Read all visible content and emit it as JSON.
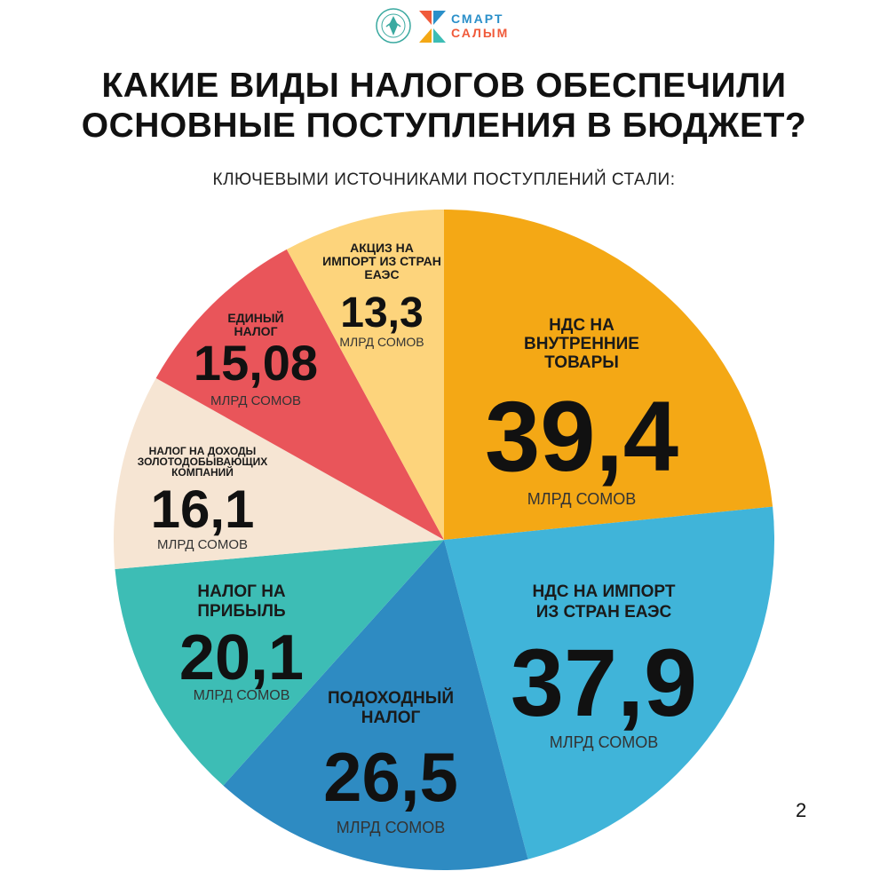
{
  "header": {
    "emblem_icon": "emblem-icon",
    "brand_line1": "СМАРТ",
    "brand_line2": "САЛЫМ",
    "brand_icon": "smart-salym-logo-icon"
  },
  "title_line1": "КАКИЕ ВИДЫ НАЛОГОВ ОБЕСПЕЧИЛИ",
  "title_line2": "ОСНОВНЫЕ ПОСТУПЛЕНИЯ В БЮДЖЕТ?",
  "subtitle": "КЛЮЧЕВЫМИ ИСТОЧНИКАМИ ПОСТУПЛЕНИЙ СТАЛИ:",
  "page_number": "2",
  "chart_data": {
    "type": "pie",
    "unit": "МЛРД СОМОВ",
    "slices": [
      {
        "label_lines": [
          "НДС НА",
          "ВНУТРЕННИЕ",
          "ТОВАРЫ"
        ],
        "value": 39.4,
        "value_text": "39,4",
        "color": "#f4a815"
      },
      {
        "label_lines": [
          "НДС НА ИМПОРТ",
          "ИЗ СТРАН ЕАЭС"
        ],
        "value": 37.9,
        "value_text": "37,9",
        "color": "#40b4d9"
      },
      {
        "label_lines": [
          "ПОДОХОДНЫЙ",
          "НАЛОГ"
        ],
        "value": 26.5,
        "value_text": "26,5",
        "color": "#2e8bc2"
      },
      {
        "label_lines": [
          "НАЛОГ НА",
          "ПРИБЫЛЬ"
        ],
        "value": 20.1,
        "value_text": "20,1",
        "color": "#3dbdb5"
      },
      {
        "label_lines": [
          "НАЛОГ НА ДОХОДЫ",
          "ЗОЛОТОДОБЫВАЮЩИХ",
          "КОМПАНИЙ"
        ],
        "value": 16.1,
        "value_text": "16,1",
        "color": "#f6e5d3"
      },
      {
        "label_lines": [
          "ЕДИНЫЙ",
          "НАЛОГ"
        ],
        "value": 15.08,
        "value_text": "15,08",
        "color": "#e9555a"
      },
      {
        "label_lines": [
          "АКЦИЗ НА",
          "ИМПОРТ ИЗ СТРАН",
          "ЕАЭС"
        ],
        "value": 13.3,
        "value_text": "13,3",
        "color": "#fdd47c"
      }
    ]
  }
}
